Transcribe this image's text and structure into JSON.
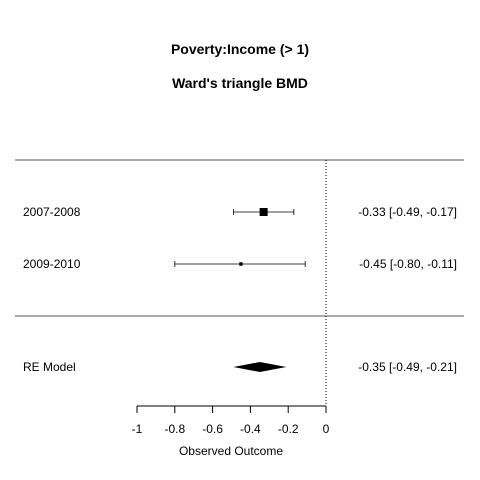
{
  "chart_data": {
    "type": "forest",
    "title": "Poverty:Income (> 1)",
    "subtitle": "Ward's triangle BMD",
    "xlabel": "Observed Outcome",
    "xlim": [
      -1,
      0
    ],
    "xticks": [
      {
        "value": -1,
        "label": "-1"
      },
      {
        "value": -0.8,
        "label": "-0.8"
      },
      {
        "value": -0.6,
        "label": "-0.6"
      },
      {
        "value": -0.4,
        "label": "-0.4"
      },
      {
        "value": -0.2,
        "label": "-0.2"
      },
      {
        "value": 0,
        "label": "0"
      }
    ],
    "reference_line": 0,
    "studies": [
      {
        "label": "2007-2008",
        "estimate": -0.33,
        "lower": -0.49,
        "upper": -0.17,
        "weight": 1.0,
        "ci_text": "-0.33 [-0.49, -0.17]"
      },
      {
        "label": "2009-2010",
        "estimate": -0.45,
        "lower": -0.8,
        "upper": -0.11,
        "weight": 0.18,
        "ci_text": "-0.45 [-0.80, -0.11]"
      }
    ],
    "summary": {
      "label": "RE Model",
      "estimate": -0.35,
      "lower": -0.49,
      "upper": -0.21,
      "ci_text": "-0.35 [-0.49, -0.21]"
    }
  }
}
